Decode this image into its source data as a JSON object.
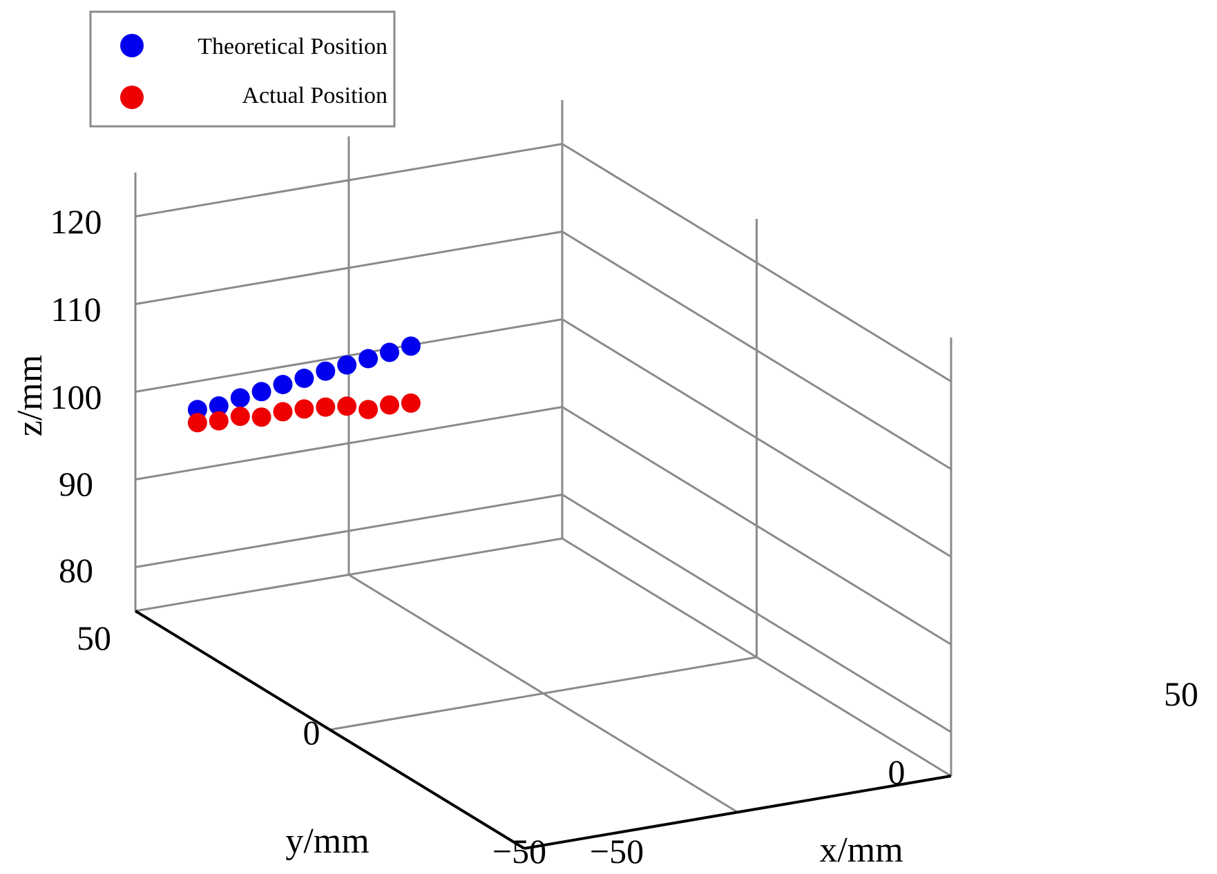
{
  "chart_data": {
    "type": "scatter",
    "projection": "3d",
    "title": "",
    "xlabel": "x/mm",
    "ylabel": "y/mm",
    "zlabel": "z/mm",
    "xlim": [
      -50,
      50
    ],
    "ylim": [
      -50,
      50
    ],
    "zlim": [
      75,
      125
    ],
    "x_ticks": [
      "−50",
      "0",
      "50"
    ],
    "y_ticks": [
      "−50",
      "0",
      "50"
    ],
    "z_ticks": [
      "80",
      "90",
      "100",
      "110",
      "120"
    ],
    "x_tick_values": [
      -50,
      0,
      50
    ],
    "y_tick_values": [
      -50,
      0,
      50
    ],
    "z_tick_values": [
      80,
      90,
      100,
      110,
      120
    ],
    "grid": true,
    "legend_position": "top-left",
    "series": [
      {
        "name": "Theoretical Position",
        "color": "#0000ee",
        "points": [
          {
            "x": -40,
            "y": 45,
            "z": 98.5
          },
          {
            "x": -35,
            "y": 45,
            "z": 98.5
          },
          {
            "x": -30,
            "y": 45,
            "z": 99.0
          },
          {
            "x": -25,
            "y": 45,
            "z": 99.3
          },
          {
            "x": -20,
            "y": 45,
            "z": 99.7
          },
          {
            "x": -15,
            "y": 45,
            "z": 100.0
          },
          {
            "x": -10,
            "y": 45,
            "z": 100.4
          },
          {
            "x": -5,
            "y": 45,
            "z": 100.7
          },
          {
            "x": 0,
            "y": 45,
            "z": 101.0
          },
          {
            "x": 5,
            "y": 45,
            "z": 101.3
          },
          {
            "x": 10,
            "y": 45,
            "z": 101.6
          }
        ]
      },
      {
        "name": "Actual Position",
        "color": "#ee0000",
        "points": [
          {
            "x": -40,
            "y": 45,
            "z": 97.0
          },
          {
            "x": -35,
            "y": 45,
            "z": 96.8
          },
          {
            "x": -30,
            "y": 45,
            "z": 96.9
          },
          {
            "x": -25,
            "y": 45,
            "z": 96.4
          },
          {
            "x": -20,
            "y": 45,
            "z": 96.6
          },
          {
            "x": -15,
            "y": 45,
            "z": 96.5
          },
          {
            "x": -10,
            "y": 45,
            "z": 96.3
          },
          {
            "x": -5,
            "y": 45,
            "z": 96.0
          },
          {
            "x": 0,
            "y": 45,
            "z": 95.2
          },
          {
            "x": 5,
            "y": 45,
            "z": 95.3
          },
          {
            "x": 10,
            "y": 45,
            "z": 95.1
          }
        ]
      }
    ]
  }
}
